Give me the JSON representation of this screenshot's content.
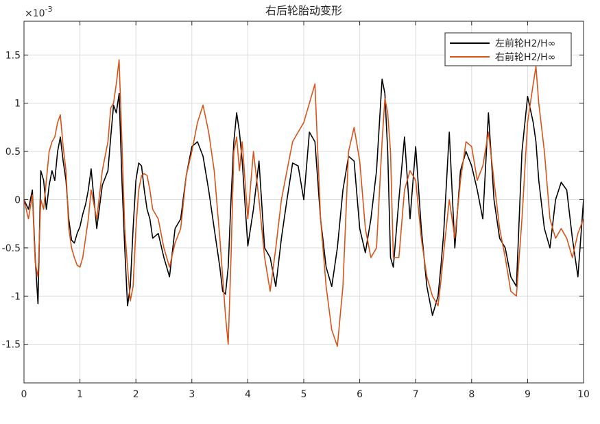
{
  "chart_data": {
    "type": "line",
    "title": "右后轮胎动变形",
    "xlabel": "",
    "ylabel": "",
    "y_exponent_label": "×10",
    "y_exponent_power": "-3",
    "xlim": [
      0,
      10
    ],
    "ylim": [
      -1.9,
      1.85
    ],
    "x_ticks": [
      0,
      1,
      2,
      3,
      4,
      5,
      6,
      7,
      8,
      9,
      10
    ],
    "x_tick_labels": [
      "0",
      "1",
      "2",
      "3",
      "4",
      "5",
      "6",
      "7",
      "8",
      "9",
      "10"
    ],
    "y_ticks": [
      -1.5,
      -1,
      -0.5,
      0,
      0.5,
      1,
      1.5
    ],
    "y_tick_labels": [
      "-1.5",
      "-1",
      "-0.5",
      "0",
      "0.5",
      "1",
      "1.5"
    ],
    "grid": true,
    "legend_position": "top-right",
    "series": [
      {
        "name": "左前轮H2/H∞",
        "color": "#000000",
        "x": [
          0,
          0.08,
          0.15,
          0.2,
          0.25,
          0.3,
          0.35,
          0.4,
          0.45,
          0.5,
          0.55,
          0.6,
          0.65,
          0.7,
          0.75,
          0.8,
          0.85,
          0.9,
          0.95,
          1.0,
          1.05,
          1.1,
          1.15,
          1.2,
          1.3,
          1.4,
          1.5,
          1.55,
          1.6,
          1.65,
          1.7,
          1.75,
          1.8,
          1.85,
          1.9,
          1.95,
          2.0,
          2.05,
          2.1,
          2.15,
          2.2,
          2.25,
          2.3,
          2.4,
          2.5,
          2.6,
          2.7,
          2.8,
          2.9,
          3.0,
          3.1,
          3.2,
          3.3,
          3.4,
          3.5,
          3.55,
          3.6,
          3.65,
          3.7,
          3.75,
          3.8,
          3.85,
          3.9,
          4.0,
          4.1,
          4.2,
          4.3,
          4.4,
          4.5,
          4.6,
          4.7,
          4.8,
          4.9,
          5.0,
          5.1,
          5.2,
          5.25,
          5.3,
          5.4,
          5.5,
          5.6,
          5.7,
          5.8,
          5.9,
          6.0,
          6.1,
          6.2,
          6.3,
          6.4,
          6.45,
          6.5,
          6.55,
          6.6,
          6.7,
          6.8,
          6.9,
          7.0,
          7.1,
          7.2,
          7.3,
          7.4,
          7.45,
          7.5,
          7.6,
          7.7,
          7.8,
          7.9,
          8.0,
          8.1,
          8.2,
          8.3,
          8.4,
          8.5,
          8.6,
          8.7,
          8.8,
          8.9,
          9.0,
          9.1,
          9.15,
          9.2,
          9.3,
          9.4,
          9.5,
          9.6,
          9.7,
          9.8,
          9.9,
          10.0
        ],
        "values": [
          0.0,
          -0.1,
          0.1,
          -0.6,
          -1.08,
          0.3,
          0.2,
          -0.1,
          0.15,
          0.3,
          0.2,
          0.5,
          0.65,
          0.4,
          0.2,
          -0.2,
          -0.42,
          -0.45,
          -0.35,
          -0.28,
          -0.15,
          -0.05,
          0.1,
          0.32,
          -0.3,
          0.15,
          0.3,
          0.65,
          0.98,
          0.9,
          1.1,
          0.2,
          -0.5,
          -1.1,
          -0.9,
          -0.3,
          0.2,
          0.38,
          0.35,
          0.1,
          -0.1,
          -0.2,
          -0.4,
          -0.35,
          -0.6,
          -0.8,
          -0.3,
          -0.2,
          0.25,
          0.55,
          0.6,
          0.45,
          0.1,
          -0.3,
          -0.7,
          -0.95,
          -0.98,
          -0.7,
          0.0,
          0.6,
          0.9,
          0.7,
          0.4,
          -0.48,
          -0.1,
          0.4,
          -0.5,
          -0.6,
          -0.9,
          -0.4,
          0.0,
          0.38,
          0.35,
          0.0,
          0.7,
          0.6,
          0.2,
          -0.2,
          -0.7,
          -0.9,
          -0.5,
          0.1,
          0.45,
          0.4,
          -0.3,
          -0.55,
          -0.2,
          0.3,
          1.25,
          1.1,
          0.5,
          -0.6,
          -0.7,
          0.0,
          0.65,
          -0.2,
          0.55,
          -0.3,
          -0.9,
          -1.2,
          -1.0,
          -0.7,
          -0.35,
          0.7,
          -0.5,
          0.3,
          0.5,
          0.35,
          0.1,
          -0.2,
          0.9,
          0.0,
          -0.4,
          -0.5,
          -0.8,
          -0.9,
          0.5,
          1.07,
          0.8,
          0.6,
          0.2,
          -0.3,
          -0.5,
          0.0,
          0.18,
          0.1,
          -0.4,
          -0.8,
          0.0
        ]
      },
      {
        "name": "右前轮H2/H∞",
        "color": "#D95319",
        "x": [
          0,
          0.08,
          0.15,
          0.2,
          0.25,
          0.3,
          0.35,
          0.4,
          0.45,
          0.5,
          0.55,
          0.6,
          0.65,
          0.7,
          0.75,
          0.8,
          0.85,
          0.9,
          0.95,
          1.0,
          1.05,
          1.1,
          1.15,
          1.2,
          1.3,
          1.4,
          1.5,
          1.55,
          1.6,
          1.65,
          1.7,
          1.75,
          1.8,
          1.85,
          1.9,
          1.95,
          2.0,
          2.05,
          2.1,
          2.15,
          2.2,
          2.25,
          2.3,
          2.4,
          2.5,
          2.6,
          2.7,
          2.8,
          2.9,
          3.0,
          3.1,
          3.2,
          3.3,
          3.4,
          3.5,
          3.55,
          3.6,
          3.65,
          3.7,
          3.75,
          3.8,
          3.85,
          3.9,
          4.0,
          4.1,
          4.2,
          4.3,
          4.4,
          4.5,
          4.6,
          4.7,
          4.8,
          4.9,
          5.0,
          5.1,
          5.2,
          5.25,
          5.3,
          5.4,
          5.5,
          5.6,
          5.7,
          5.8,
          5.9,
          6.0,
          6.1,
          6.2,
          6.3,
          6.4,
          6.45,
          6.5,
          6.55,
          6.6,
          6.7,
          6.8,
          6.9,
          7.0,
          7.1,
          7.2,
          7.3,
          7.4,
          7.45,
          7.5,
          7.6,
          7.7,
          7.8,
          7.9,
          8.0,
          8.1,
          8.2,
          8.3,
          8.4,
          8.5,
          8.6,
          8.7,
          8.8,
          8.9,
          9.0,
          9.1,
          9.15,
          9.2,
          9.3,
          9.4,
          9.5,
          9.6,
          9.7,
          9.8,
          9.9,
          10.0
        ],
        "values": [
          0.0,
          -0.2,
          0.05,
          -0.65,
          -0.8,
          0.0,
          -0.1,
          0.2,
          0.5,
          0.6,
          0.65,
          0.8,
          0.88,
          0.55,
          0.3,
          -0.3,
          -0.5,
          -0.6,
          -0.68,
          -0.7,
          -0.6,
          -0.4,
          -0.2,
          0.1,
          -0.2,
          0.3,
          0.6,
          0.95,
          1.0,
          1.2,
          1.45,
          0.6,
          -0.3,
          -0.7,
          -1.05,
          -0.9,
          -0.3,
          0.1,
          0.25,
          0.27,
          0.25,
          0.1,
          -0.1,
          -0.2,
          -0.5,
          -0.7,
          -0.45,
          -0.3,
          0.25,
          0.5,
          0.8,
          0.98,
          0.7,
          0.3,
          -0.4,
          -0.8,
          -1.2,
          -1.5,
          -0.6,
          0.5,
          0.65,
          0.3,
          0.6,
          -0.2,
          0.5,
          0.0,
          -0.6,
          -0.95,
          -0.5,
          0.0,
          0.3,
          0.6,
          0.7,
          0.8,
          1.0,
          1.2,
          0.5,
          -0.2,
          -0.9,
          -1.35,
          -1.52,
          -0.9,
          0.5,
          0.75,
          0.4,
          -0.3,
          -0.6,
          -0.5,
          0.6,
          1.05,
          0.9,
          0.5,
          -0.6,
          -0.6,
          0.1,
          0.3,
          0.2,
          -0.4,
          -0.8,
          -1.0,
          -1.1,
          -0.85,
          -0.55,
          0.0,
          -0.4,
          0.2,
          0.6,
          0.55,
          0.2,
          0.35,
          0.7,
          0.2,
          -0.3,
          -0.6,
          -0.95,
          -1.0,
          -0.2,
          0.8,
          1.2,
          1.38,
          1.0,
          0.5,
          -0.2,
          -0.4,
          -0.3,
          -0.4,
          -0.6,
          -0.35,
          -0.2
        ]
      }
    ]
  }
}
